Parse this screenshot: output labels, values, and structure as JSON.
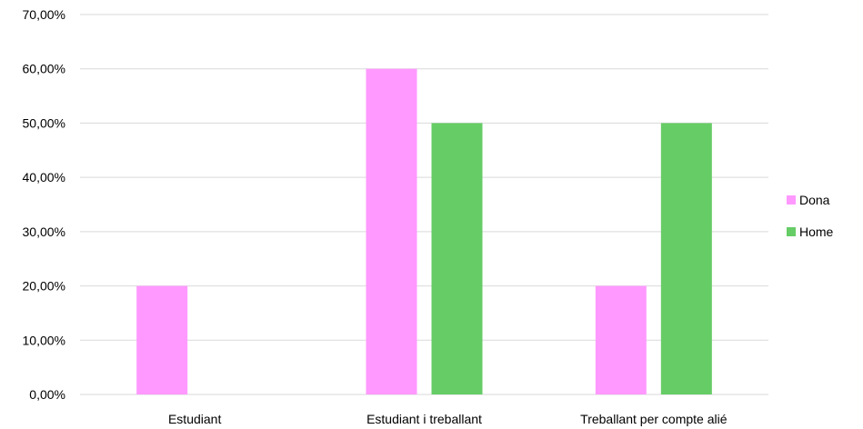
{
  "chart_data": {
    "type": "bar",
    "categories": [
      "Estudiant",
      "Estudiant i treballant",
      "Treballant per compte alié"
    ],
    "series": [
      {
        "name": "Dona",
        "values": [
          20,
          60,
          20
        ],
        "color": "#FF99FF"
      },
      {
        "name": "Home",
        "values": [
          0,
          50,
          50
        ],
        "color": "#66CC66"
      }
    ],
    "ylim": [
      0,
      70
    ],
    "yticks": [
      "0,00%",
      "10,00%",
      "20,00%",
      "30,00%",
      "40,00%",
      "50,00%",
      "60,00%",
      "70,00%"
    ],
    "grid": true,
    "legend": "right",
    "gridline_color": "#D9D9D9"
  }
}
